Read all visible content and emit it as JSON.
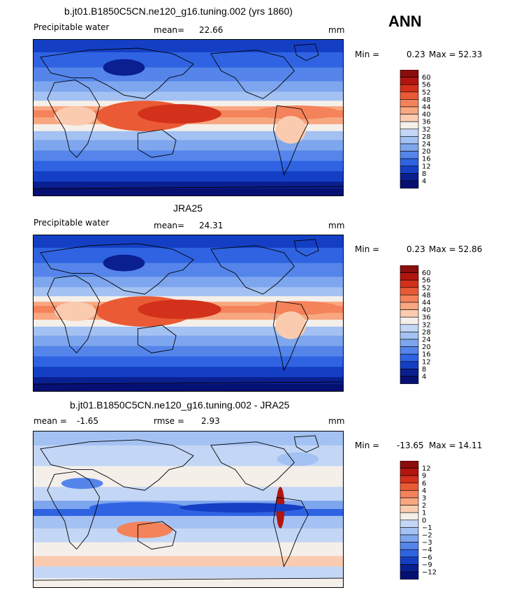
{
  "season": "ANN",
  "chart_data": [
    {
      "type": "heatmap",
      "title": "b.jt01.B1850C5CN.ne120_g16.tuning.002 (yrs 1860)",
      "left_label": "Precipitable water",
      "stat_label": "mean=",
      "stat_value": "22.66",
      "units": "mm",
      "min_label": "Min =",
      "min_value": "0.23",
      "max_label": "Max =",
      "max_value": "52.33",
      "levels": [
        "60",
        "56",
        "52",
        "48",
        "44",
        "40",
        "36",
        "32",
        "28",
        "24",
        "20",
        "16",
        "12",
        "8",
        "4"
      ],
      "colors": [
        "#8b0d0d",
        "#b2150f",
        "#d3311b",
        "#ea5a34",
        "#f4825a",
        "#f8a780",
        "#fbcbb0",
        "#f5efea",
        "#c3d6f5",
        "#a3c1f2",
        "#7ea6ee",
        "#5585ea",
        "#2f63e2",
        "#143fc4",
        "#0a1f90",
        "#061073"
      ]
    },
    {
      "type": "heatmap",
      "title": "JRA25",
      "left_label": "Precipitable water",
      "stat_label": "mean=",
      "stat_value": "24.31",
      "units": "mm",
      "min_label": "Min =",
      "min_value": "0.23",
      "max_label": "Max =",
      "max_value": "52.86",
      "levels": [
        "60",
        "56",
        "52",
        "48",
        "44",
        "40",
        "36",
        "32",
        "28",
        "24",
        "20",
        "16",
        "12",
        "8",
        "4"
      ],
      "colors": [
        "#8b0d0d",
        "#b2150f",
        "#d3311b",
        "#ea5a34",
        "#f4825a",
        "#f8a780",
        "#fbcbb0",
        "#f5efea",
        "#c3d6f5",
        "#a3c1f2",
        "#7ea6ee",
        "#5585ea",
        "#2f63e2",
        "#143fc4",
        "#0a1f90",
        "#061073"
      ]
    },
    {
      "type": "heatmap",
      "title": "b.jt01.B1850C5CN.ne120_g16.tuning.002 - JRA25",
      "left_label": "mean =",
      "left_value": "-1.65",
      "stat_label": "rmse =",
      "stat_value": "2.93",
      "units": "mm",
      "min_label": "Min =",
      "min_value": "-13.65",
      "max_label": "Max =",
      "max_value": "14.11",
      "levels": [
        "12",
        "9",
        "6",
        "4",
        "3",
        "2",
        "1",
        "0",
        "−1",
        "−2",
        "−3",
        "−4",
        "−6",
        "−9",
        "−12"
      ],
      "colors": [
        "#8b0d0d",
        "#b2150f",
        "#d3311b",
        "#ea5a34",
        "#f4825a",
        "#f8a780",
        "#fbcbb0",
        "#f5efea",
        "#c3d6f5",
        "#a3c1f2",
        "#7ea6ee",
        "#5585ea",
        "#2f63e2",
        "#143fc4",
        "#0a1f90",
        "#061073"
      ]
    }
  ]
}
